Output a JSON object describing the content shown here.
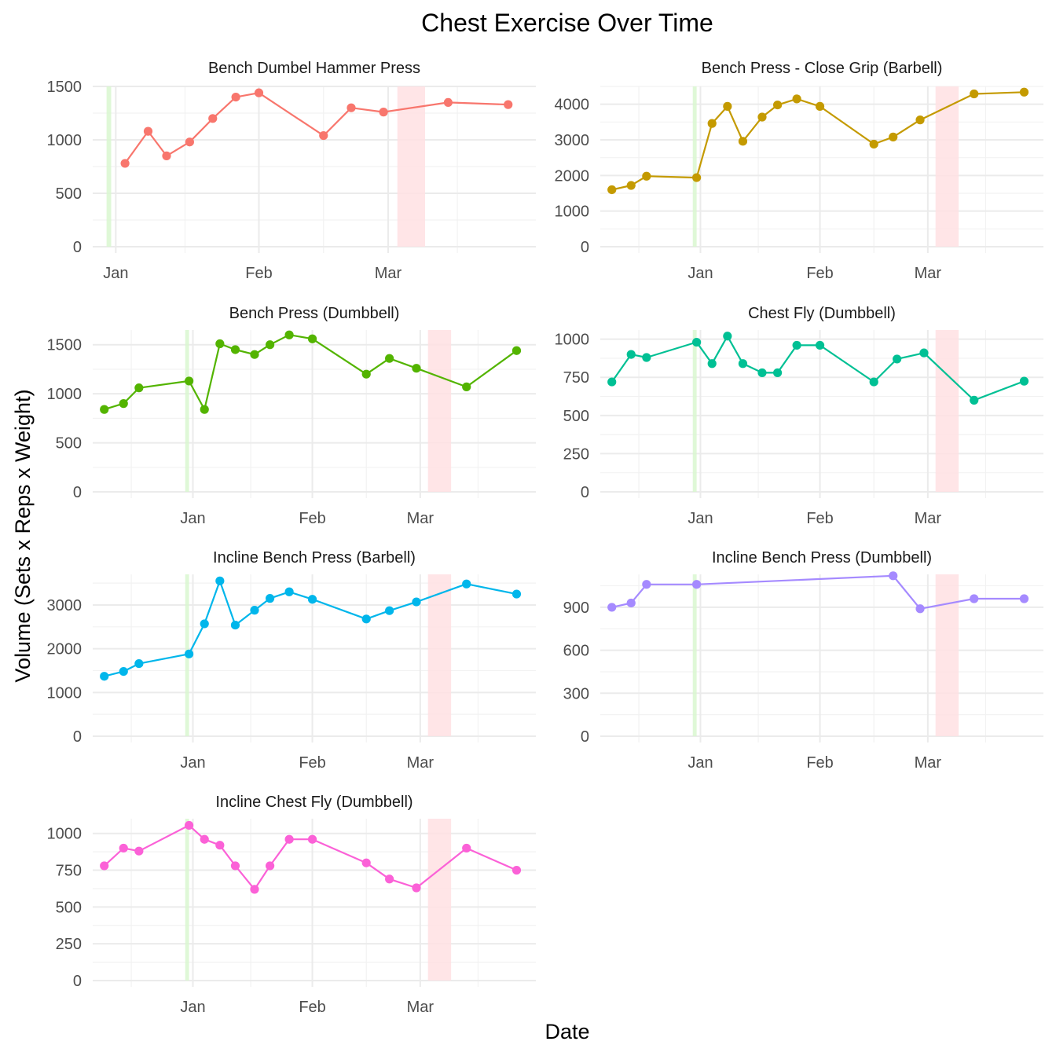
{
  "chart_data": {
    "type": "line",
    "title": "Chest  Exercise Over Time",
    "xlabel": "Date",
    "ylabel": "Volume (Sets x Reps x Weight)",
    "grid": true,
    "legend": "none",
    "x_ticks": [
      "Jan",
      "Feb",
      "Mar"
    ],
    "highlight_bands": [
      {
        "color": "#d9f7d0",
        "x": [
          "2022-12-30",
          "2022-12-31"
        ]
      },
      {
        "color": "#ffe0e3",
        "x": [
          "2023-03-03",
          "2023-03-09"
        ]
      }
    ],
    "panels": [
      {
        "name": "Bench Dumbel Hammer Press",
        "color": "#F8766D",
        "xlim": [
          "2022-12-27",
          "2023-04-02"
        ],
        "ylim": [
          0,
          1500
        ],
        "y_ticks": [
          0,
          500,
          1000,
          1500
        ],
        "x": [
          "2023-01-03",
          "2023-01-08",
          "2023-01-12",
          "2023-01-17",
          "2023-01-22",
          "2023-01-27",
          "2023-02-01",
          "2023-02-15",
          "2023-02-21",
          "2023-02-28",
          "2023-03-14",
          "2023-03-27"
        ],
        "y": [
          780,
          1080,
          850,
          980,
          1200,
          1400,
          1440,
          1040,
          1300,
          1260,
          1350,
          1330
        ]
      },
      {
        "name": "Bench Press - Close Grip (Barbell)",
        "color": "#C49A00",
        "xlim": [
          "2022-12-06",
          "2023-03-31"
        ],
        "ylim": [
          0,
          4500
        ],
        "y_ticks": [
          0,
          1000,
          2000,
          3000,
          4000
        ],
        "x": [
          "2022-12-09",
          "2022-12-14",
          "2022-12-18",
          "2022-12-31",
          "2023-01-04",
          "2023-01-08",
          "2023-01-12",
          "2023-01-17",
          "2023-01-21",
          "2023-01-26",
          "2023-02-01",
          "2023-02-15",
          "2023-02-20",
          "2023-02-27",
          "2023-03-13",
          "2023-03-26"
        ],
        "y": [
          1600,
          1720,
          1980,
          1940,
          3460,
          3940,
          2960,
          3640,
          3980,
          4150,
          3940,
          2880,
          3080,
          3560,
          4290,
          4340
        ]
      },
      {
        "name": "Bench Press (Dumbbell)",
        "color": "#53B400",
        "xlim": [
          "2022-12-06",
          "2023-03-31"
        ],
        "ylim": [
          0,
          1650
        ],
        "y_ticks": [
          0,
          500,
          1000,
          1500
        ],
        "x": [
          "2022-12-09",
          "2022-12-14",
          "2022-12-18",
          "2022-12-31",
          "2023-01-04",
          "2023-01-08",
          "2023-01-12",
          "2023-01-17",
          "2023-01-21",
          "2023-01-26",
          "2023-02-01",
          "2023-02-15",
          "2023-02-21",
          "2023-02-28",
          "2023-03-13",
          "2023-03-26"
        ],
        "y": [
          840,
          900,
          1060,
          1130,
          840,
          1510,
          1450,
          1400,
          1500,
          1600,
          1560,
          1200,
          1360,
          1260,
          1070,
          1440
        ]
      },
      {
        "name": "Chest Fly (Dumbbell)",
        "color": "#00C094",
        "xlim": [
          "2022-12-06",
          "2023-03-31"
        ],
        "ylim": [
          0,
          1060
        ],
        "y_ticks": [
          0,
          250,
          500,
          750,
          1000
        ],
        "x": [
          "2022-12-09",
          "2022-12-14",
          "2022-12-18",
          "2022-12-31",
          "2023-01-04",
          "2023-01-08",
          "2023-01-12",
          "2023-01-17",
          "2023-01-21",
          "2023-01-26",
          "2023-02-01",
          "2023-02-15",
          "2023-02-21",
          "2023-02-28",
          "2023-03-13",
          "2023-03-26"
        ],
        "y": [
          720,
          900,
          880,
          980,
          840,
          1020,
          840,
          780,
          780,
          960,
          960,
          720,
          870,
          910,
          600,
          725
        ]
      },
      {
        "name": "Incline Bench Press (Barbell)",
        "color": "#00B6EB",
        "xlim": [
          "2022-12-06",
          "2023-03-31"
        ],
        "ylim": [
          0,
          3700
        ],
        "y_ticks": [
          0,
          1000,
          2000,
          3000
        ],
        "x": [
          "2022-12-09",
          "2022-12-14",
          "2022-12-18",
          "2022-12-31",
          "2023-01-04",
          "2023-01-08",
          "2023-01-12",
          "2023-01-17",
          "2023-01-21",
          "2023-01-26",
          "2023-02-01",
          "2023-02-15",
          "2023-02-21",
          "2023-02-28",
          "2023-03-13",
          "2023-03-26"
        ],
        "y": [
          1370,
          1480,
          1660,
          1880,
          2570,
          3550,
          2540,
          2880,
          3150,
          3300,
          3130,
          2680,
          2870,
          3070,
          3480,
          3250
        ]
      },
      {
        "name": "Incline Bench Press (Dumbbell)",
        "color": "#A58AFF",
        "xlim": [
          "2022-12-06",
          "2023-03-31"
        ],
        "ylim": [
          0,
          1130
        ],
        "y_ticks": [
          0,
          300,
          600,
          900
        ],
        "x": [
          "2022-12-09",
          "2022-12-14",
          "2022-12-18",
          "2022-12-31",
          "2023-02-20",
          "2023-02-27",
          "2023-03-13",
          "2023-03-26"
        ],
        "y": [
          900,
          930,
          1060,
          1060,
          1120,
          890,
          960,
          960
        ]
      },
      {
        "name": "Incline Chest Fly (Dumbbell)",
        "color": "#FB61D7",
        "xlim": [
          "2022-12-06",
          "2023-03-31"
        ],
        "ylim": [
          0,
          1100
        ],
        "y_ticks": [
          0,
          250,
          500,
          750,
          1000
        ],
        "x": [
          "2022-12-09",
          "2022-12-14",
          "2022-12-18",
          "2022-12-31",
          "2023-01-04",
          "2023-01-08",
          "2023-01-12",
          "2023-01-17",
          "2023-01-21",
          "2023-01-26",
          "2023-02-01",
          "2023-02-15",
          "2023-02-21",
          "2023-02-28",
          "2023-03-13",
          "2023-03-26"
        ],
        "y": [
          780,
          900,
          880,
          1055,
          960,
          920,
          780,
          620,
          780,
          960,
          960,
          800,
          690,
          630,
          900,
          750
        ]
      }
    ]
  }
}
